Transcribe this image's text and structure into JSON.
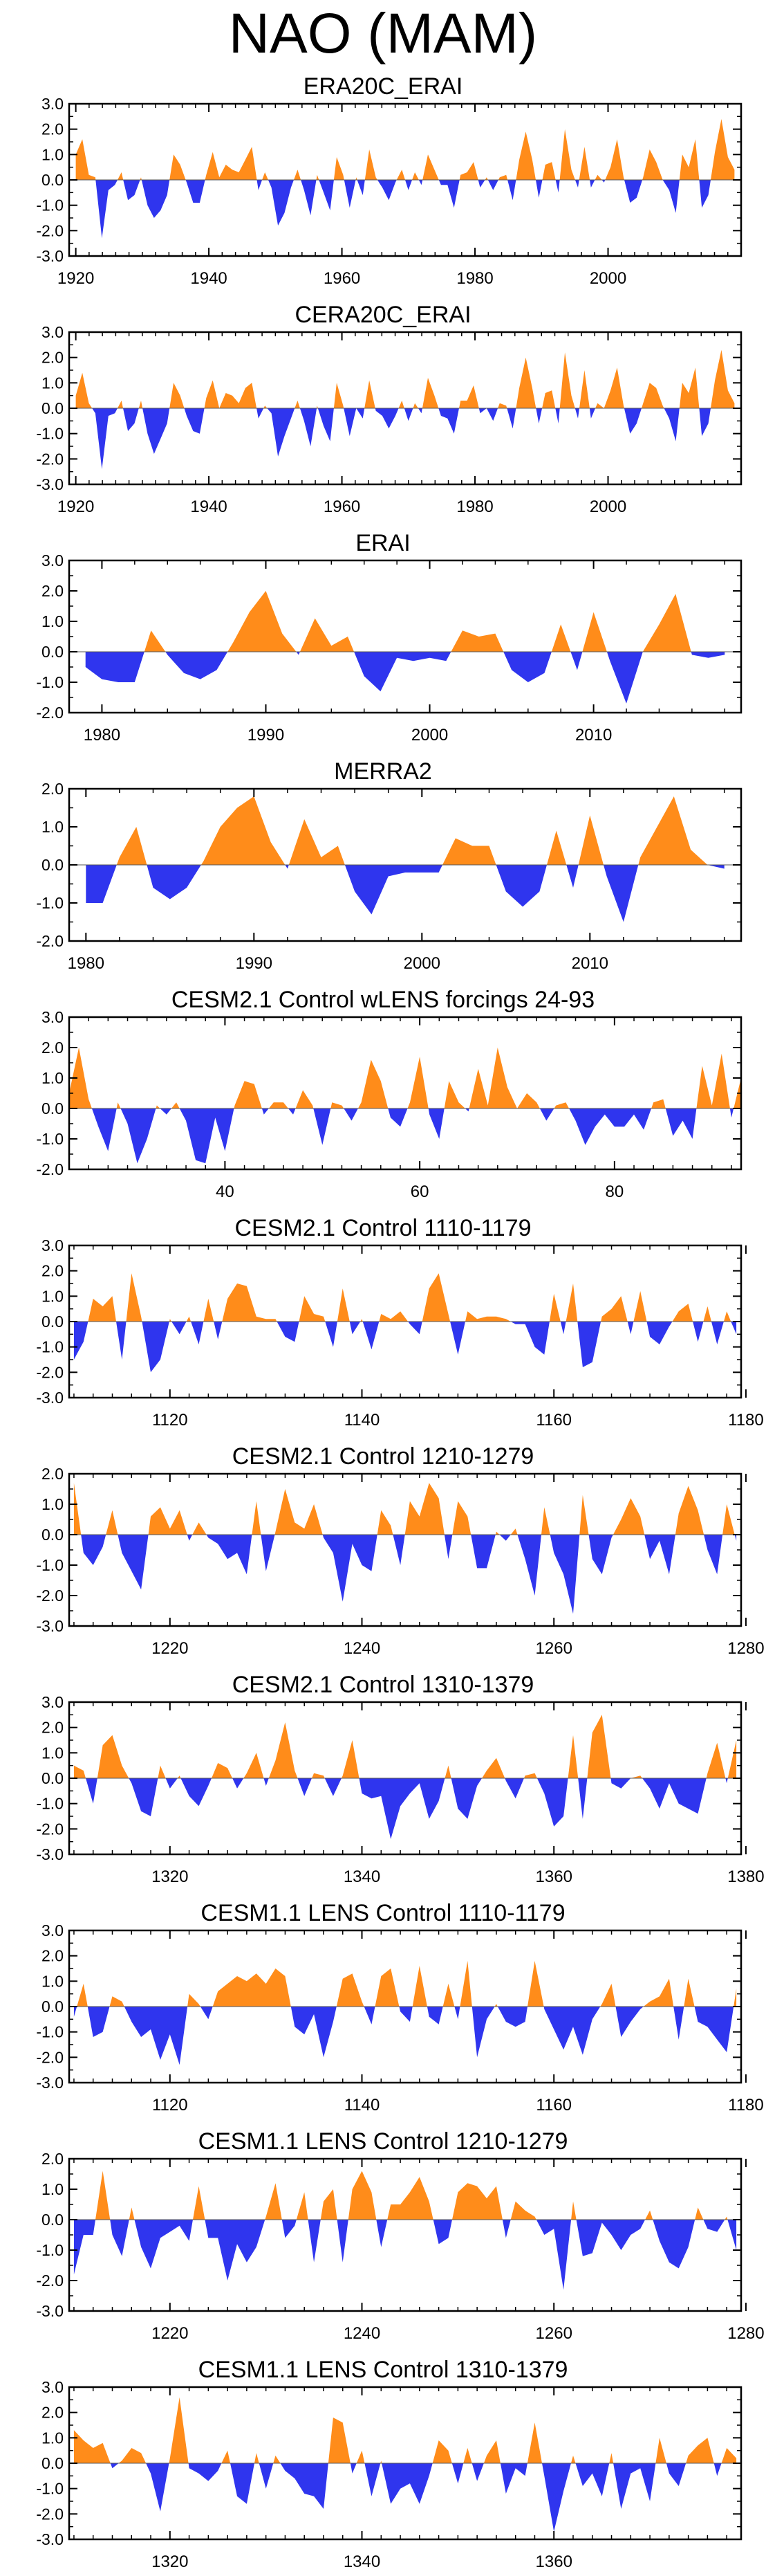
{
  "title": "NAO (MAM)",
  "colors": {
    "positive": "#ff8c1a",
    "negative": "#2f35ee",
    "axis": "#000000",
    "zero_line": "#555555"
  },
  "chart_data": [
    {
      "type": "area",
      "title": "ERA20C_ERAI",
      "x_start": 1920,
      "x_end": 2019,
      "xlim": [
        1919,
        2020
      ],
      "ylim": [
        -3,
        3
      ],
      "yticks": [
        3,
        2,
        1,
        0,
        -1,
        -2,
        -3
      ],
      "ytick_labels": [
        "3.0",
        "2.0",
        "1.0",
        "0.0",
        "-1.0",
        "-2.0",
        "-3.0"
      ],
      "xticks": [
        1920,
        1940,
        1960,
        1980,
        2000
      ],
      "xtick_labels": [
        "1920",
        "1940",
        "1960",
        "1980",
        "2000"
      ],
      "values": [
        1.0,
        1.6,
        0.2,
        0.1,
        -2.3,
        -0.4,
        -0.2,
        0.3,
        -0.8,
        -0.6,
        0.1,
        -1.0,
        -1.5,
        -1.2,
        -0.6,
        1.0,
        0.6,
        -0.1,
        -0.9,
        -0.9,
        0.2,
        1.1,
        0.1,
        0.6,
        0.4,
        0.3,
        0.8,
        1.3,
        -0.4,
        0.3,
        -0.3,
        -1.8,
        -1.3,
        -0.3,
        0.4,
        -0.4,
        -1.4,
        0.2,
        -0.5,
        -1.2,
        0.9,
        0.2,
        -1.1,
        0.1,
        -0.6,
        1.2,
        0.1,
        -0.3,
        -0.8,
        -0.1,
        0.4,
        -0.4,
        0.3,
        -0.2,
        1.0,
        0.4,
        -0.2,
        -0.2,
        -1.1,
        0.2,
        0.3,
        0.7,
        -0.3,
        0.1,
        -0.4,
        0.1,
        0.2,
        -0.8,
        0.8,
        1.9,
        0.8,
        -0.7,
        0.6,
        0.7,
        -0.5,
        2.0,
        0.4,
        -0.3,
        1.3,
        -0.3,
        0.2,
        -0.1,
        0.5,
        1.6,
        0.1,
        -0.9,
        -0.7,
        0.1,
        1.2,
        0.7,
        0.0,
        -0.4,
        -1.3,
        1.0,
        0.5,
        1.6,
        -1.1,
        -0.6,
        1.1,
        2.4,
        0.9,
        0.4
      ]
    },
    {
      "type": "area",
      "title": "CERA20C_ERAI",
      "x_start": 1920,
      "x_end": 2019,
      "xlim": [
        1919,
        2020
      ],
      "ylim": [
        -3,
        3
      ],
      "yticks": [
        3,
        2,
        1,
        0,
        -1,
        -2,
        -3
      ],
      "ytick_labels": [
        "3.0",
        "2.0",
        "1.0",
        "0.0",
        "-1.0",
        "-2.0",
        "-3.0"
      ],
      "xticks": [
        1920,
        1940,
        1960,
        1980,
        2000
      ],
      "xtick_labels": [
        "1920",
        "1940",
        "1960",
        "1980",
        "2000"
      ],
      "values": [
        0.5,
        1.4,
        0.2,
        -0.2,
        -2.4,
        -0.3,
        -0.2,
        0.3,
        -0.9,
        -0.6,
        0.3,
        -1.0,
        -1.8,
        -1.2,
        -0.6,
        1.0,
        0.5,
        -0.3,
        -0.9,
        -1.0,
        0.4,
        1.1,
        0.0,
        0.6,
        0.5,
        0.2,
        0.8,
        1.0,
        -0.4,
        0.1,
        -0.2,
        -1.9,
        -1.1,
        -0.4,
        0.3,
        -0.5,
        -1.5,
        0.1,
        -0.7,
        -1.3,
        1.0,
        0.1,
        -1.1,
        0.0,
        -0.4,
        1.1,
        -0.1,
        -0.3,
        -0.8,
        -0.3,
        0.3,
        -0.5,
        0.2,
        -0.2,
        1.2,
        0.5,
        -0.3,
        -0.4,
        -1.0,
        0.3,
        0.3,
        0.9,
        -0.2,
        0.0,
        -0.5,
        0.2,
        0.1,
        -0.8,
        0.8,
        2.0,
        0.8,
        -0.6,
        0.6,
        0.7,
        -0.6,
        2.2,
        0.5,
        -0.4,
        1.5,
        -0.4,
        0.2,
        0.0,
        0.7,
        1.6,
        0.1,
        -1.0,
        -0.6,
        0.2,
        1.0,
        0.8,
        0.1,
        -0.4,
        -1.3,
        1.0,
        0.6,
        1.6,
        -1.1,
        -0.6,
        1.1,
        2.3,
        0.7,
        0.2
      ]
    },
    {
      "type": "area",
      "title": "ERAI",
      "x_start": 1979,
      "x_end": 2018,
      "xlim": [
        1978,
        2019
      ],
      "ylim": [
        -2,
        3
      ],
      "yticks": [
        3,
        2,
        1,
        0,
        -1,
        -2
      ],
      "ytick_labels": [
        "3.0",
        "2.0",
        "1.0",
        "0.0",
        "-1.0",
        "-2.0"
      ],
      "xticks": [
        1980,
        1990,
        2000,
        2010
      ],
      "xtick_labels": [
        "1980",
        "1990",
        "2000",
        "2010"
      ],
      "values": [
        -0.5,
        -0.9,
        -1.0,
        -1.0,
        0.7,
        -0.1,
        -0.7,
        -0.9,
        -0.6,
        0.3,
        1.3,
        2.0,
        0.6,
        -0.1,
        1.1,
        0.2,
        0.5,
        -0.8,
        -1.3,
        -0.2,
        -0.3,
        -0.2,
        -0.3,
        0.7,
        0.5,
        0.6,
        -0.6,
        -1.0,
        -0.7,
        0.9,
        -0.6,
        1.3,
        -0.3,
        -1.7,
        0.0,
        0.9,
        1.9,
        -0.1,
        -0.2,
        -0.1
      ]
    },
    {
      "type": "area",
      "title": "MERRA2",
      "x_start": 1980,
      "x_end": 2018,
      "xlim": [
        1979,
        2019
      ],
      "ylim": [
        -2,
        2
      ],
      "yticks": [
        2,
        1,
        0,
        -1,
        -2
      ],
      "ytick_labels": [
        "2.0",
        "1.0",
        "0.0",
        "-1.0",
        "-2.0"
      ],
      "xticks": [
        1980,
        1990,
        2000,
        2010
      ],
      "xtick_labels": [
        "1980",
        "1990",
        "2000",
        "2010"
      ],
      "values": [
        -1.0,
        -1.0,
        0.2,
        1.0,
        -0.6,
        -0.9,
        -0.6,
        0.1,
        1.0,
        1.5,
        1.8,
        0.6,
        -0.1,
        1.2,
        0.2,
        0.5,
        -0.7,
        -1.3,
        -0.3,
        -0.2,
        -0.2,
        -0.2,
        0.7,
        0.5,
        0.5,
        -0.7,
        -1.1,
        -0.7,
        0.9,
        -0.6,
        1.3,
        -0.3,
        -1.5,
        0.2,
        1.0,
        1.8,
        0.4,
        0.0,
        -0.1
      ]
    },
    {
      "type": "area",
      "title": "CESM2.1 Control wLENS forcings 24-93",
      "x_start": 24,
      "x_end": 93,
      "xlim": [
        24,
        93
      ],
      "ylim": [
        -2,
        3
      ],
      "yticks": [
        3,
        2,
        1,
        0,
        -1,
        -2
      ],
      "ytick_labels": [
        "3.0",
        "2.0",
        "1.0",
        "0.0",
        "-1.0",
        "-2.0"
      ],
      "xticks": [
        40,
        60,
        80
      ],
      "xtick_labels": [
        "40",
        "60",
        "80"
      ],
      "values": [
        0.5,
        2.0,
        0.3,
        -0.6,
        -1.4,
        0.2,
        -0.5,
        -1.8,
        -1.0,
        0.1,
        -0.2,
        0.2,
        -0.4,
        -1.7,
        -1.8,
        -0.3,
        -1.4,
        0.1,
        0.9,
        0.8,
        -0.2,
        0.2,
        0.2,
        -0.2,
        0.6,
        0.1,
        -1.2,
        0.2,
        0.1,
        -0.4,
        0.2,
        1.6,
        0.9,
        -0.3,
        -0.6,
        0.2,
        1.7,
        -0.2,
        -1.0,
        0.9,
        0.2,
        -0.1,
        1.3,
        0.1,
        2.0,
        0.7,
        0.0,
        0.5,
        0.2,
        -0.4,
        0.1,
        0.2,
        -0.4,
        -1.2,
        -0.6,
        -0.2,
        -0.6,
        -0.6,
        -0.2,
        -0.7,
        0.2,
        0.3,
        -0.9,
        -0.4,
        -1.0,
        1.4,
        0.1,
        1.8,
        -0.3,
        1.0
      ]
    },
    {
      "type": "area",
      "title": "CESM2.1 Control 1110-1179",
      "x_start": 1110,
      "x_end": 1179,
      "xlim": [
        1109.5,
        1179.5
      ],
      "ylim": [
        -3,
        3
      ],
      "yticks": [
        3,
        2,
        1,
        0,
        -1,
        -2,
        -3
      ],
      "ytick_labels": [
        "3.0",
        "2.0",
        "1.0",
        "0.0",
        "-1.0",
        "-2.0",
        "-3.0"
      ],
      "xticks": [
        1120,
        1140,
        1160,
        1180
      ],
      "xtick_labels": [
        "1120",
        "1140",
        "1160",
        "1180"
      ],
      "values": [
        -1.5,
        -0.8,
        0.9,
        0.6,
        1.0,
        -1.5,
        1.9,
        0.2,
        -2.0,
        -1.5,
        0.1,
        -0.5,
        0.2,
        -0.9,
        0.9,
        -0.7,
        0.9,
        1.5,
        1.4,
        0.2,
        0.1,
        0.1,
        -0.6,
        -0.8,
        1.0,
        0.3,
        0.2,
        -1.0,
        1.3,
        -0.5,
        0.1,
        -1.1,
        0.3,
        0.1,
        0.4,
        -0.1,
        -0.5,
        1.3,
        1.9,
        0.3,
        -1.3,
        0.4,
        0.1,
        0.2,
        0.2,
        0.1,
        -0.1,
        -0.1,
        -1.0,
        -1.3,
        1.1,
        -0.5,
        1.5,
        -1.8,
        -1.6,
        0.2,
        0.5,
        1.0,
        -0.5,
        1.2,
        -0.6,
        -0.9,
        -0.2,
        0.4,
        0.7,
        -0.8,
        0.6,
        -0.9,
        0.4,
        -0.5
      ]
    },
    {
      "type": "area",
      "title": "CESM2.1 Control 1210-1279",
      "x_start": 1210,
      "x_end": 1279,
      "xlim": [
        1209.5,
        1279.5
      ],
      "ylim": [
        -3,
        2
      ],
      "yticks": [
        2,
        1,
        0,
        -1,
        -2,
        -3
      ],
      "ytick_labels": [
        "2.0",
        "1.0",
        "0.0",
        "-1.0",
        "-2.0",
        "-3.0"
      ],
      "xticks": [
        1220,
        1240,
        1260,
        1280
      ],
      "xtick_labels": [
        "1220",
        "1240",
        "1260",
        "1280"
      ],
      "values": [
        1.7,
        -0.6,
        -1.0,
        -0.4,
        0.8,
        -0.6,
        -1.2,
        -1.8,
        0.6,
        0.9,
        0.2,
        0.8,
        -0.2,
        0.4,
        -0.1,
        -0.3,
        -0.8,
        -0.6,
        -1.3,
        1.1,
        -1.2,
        0.1,
        1.5,
        0.4,
        0.2,
        1.0,
        -0.1,
        -0.6,
        -2.2,
        -0.3,
        -1.0,
        -1.2,
        0.8,
        0.3,
        -1.0,
        1.1,
        0.6,
        1.7,
        1.2,
        -0.8,
        1.1,
        0.6,
        -1.1,
        -1.1,
        0.1,
        -0.2,
        0.2,
        -0.8,
        -2.0,
        0.9,
        -0.6,
        -1.3,
        -2.6,
        1.3,
        -0.8,
        -1.3,
        -0.1,
        0.5,
        1.2,
        0.6,
        -0.8,
        -0.2,
        -1.3,
        0.7,
        1.6,
        0.8,
        -0.5,
        -1.3,
        1.0,
        -0.2
      ]
    },
    {
      "type": "area",
      "title": "CESM2.1 Control 1310-1379",
      "x_start": 1310,
      "x_end": 1379,
      "xlim": [
        1309.5,
        1379.5
      ],
      "ylim": [
        -3,
        3
      ],
      "yticks": [
        3,
        2,
        1,
        0,
        -1,
        -2,
        -3
      ],
      "ytick_labels": [
        "3.0",
        "2.0",
        "1.0",
        "0.0",
        "-1.0",
        "-2.0",
        "-3.0"
      ],
      "xticks": [
        1320,
        1340,
        1360,
        1380
      ],
      "xtick_labels": [
        "1320",
        "1340",
        "1360",
        "1380"
      ],
      "values": [
        0.5,
        0.3,
        -1.0,
        1.3,
        1.7,
        0.5,
        -0.2,
        -1.3,
        -1.5,
        0.5,
        -0.4,
        0.1,
        -0.7,
        -1.1,
        -0.3,
        0.6,
        0.4,
        -0.4,
        0.2,
        1.0,
        -0.3,
        0.7,
        2.2,
        0.3,
        -0.7,
        0.2,
        0.1,
        -0.7,
        0.1,
        1.5,
        -0.6,
        -0.8,
        -0.7,
        -2.4,
        -1.1,
        -0.6,
        -0.2,
        -1.6,
        -0.9,
        0.5,
        -1.2,
        -1.6,
        -0.3,
        0.3,
        0.8,
        -0.1,
        -0.8,
        0.1,
        0.2,
        -0.6,
        -1.9,
        -1.5,
        1.7,
        -1.6,
        1.8,
        2.5,
        -0.2,
        -0.4,
        0.0,
        0.1,
        -0.4,
        -1.2,
        -0.2,
        -1.0,
        -1.2,
        -1.4,
        0.2,
        1.4,
        -0.2,
        1.5
      ]
    },
    {
      "type": "area",
      "title": "CESM1.1 LENS Control 1110-1179",
      "x_start": 1110,
      "x_end": 1179,
      "xlim": [
        1109.5,
        1179.5
      ],
      "ylim": [
        -3,
        3
      ],
      "yticks": [
        3,
        2,
        1,
        0,
        -1,
        -2,
        -3
      ],
      "ytick_labels": [
        "3.0",
        "2.0",
        "1.0",
        "0.0",
        "-1.0",
        "-2.0",
        "-3.0"
      ],
      "xticks": [
        1120,
        1140,
        1160,
        1180
      ],
      "xtick_labels": [
        "1120",
        "1140",
        "1160",
        "1180"
      ],
      "values": [
        -0.4,
        0.9,
        -1.2,
        -1.0,
        0.4,
        0.2,
        -0.6,
        -1.2,
        -0.9,
        -2.1,
        -1.1,
        -2.3,
        0.5,
        0.1,
        -0.5,
        0.6,
        0.9,
        1.2,
        1.0,
        1.3,
        0.9,
        1.5,
        1.2,
        -0.8,
        -1.1,
        -0.3,
        -2.0,
        -0.6,
        1.1,
        1.3,
        0.2,
        -0.7,
        1.2,
        1.5,
        -0.2,
        -0.6,
        1.6,
        -0.4,
        -0.7,
        0.9,
        -0.5,
        1.8,
        -2.0,
        -0.5,
        0.1,
        -0.6,
        -0.8,
        -0.6,
        1.8,
        -0.1,
        -0.9,
        -1.7,
        -0.8,
        -1.9,
        -0.5,
        0.1,
        0.9,
        -1.2,
        -0.6,
        -0.1,
        0.2,
        0.4,
        1.1,
        -1.3,
        1.1,
        -0.6,
        -0.8,
        -1.3,
        -1.8,
        0.7
      ]
    },
    {
      "type": "area",
      "title": "CESM1.1 LENS Control 1210-1279",
      "x_start": 1210,
      "x_end": 1279,
      "xlim": [
        1209.5,
        1279.5
      ],
      "ylim": [
        -3,
        2
      ],
      "yticks": [
        2,
        1,
        0,
        -1,
        -2,
        -3
      ],
      "ytick_labels": [
        "2.0",
        "1.0",
        "0.0",
        "-1.0",
        "-2.0",
        "-3.0"
      ],
      "xticks": [
        1220,
        1240,
        1260,
        1280
      ],
      "xtick_labels": [
        "1220",
        "1240",
        "1260",
        "1280"
      ],
      "values": [
        -1.8,
        -0.5,
        -0.5,
        1.6,
        -0.5,
        -1.2,
        0.4,
        -0.9,
        -1.6,
        -0.6,
        -0.4,
        -0.2,
        -0.7,
        1.1,
        -0.6,
        -0.6,
        -2.0,
        -0.8,
        -1.4,
        -0.9,
        0.1,
        1.2,
        -0.6,
        -0.2,
        0.9,
        -1.4,
        0.6,
        1.0,
        -1.4,
        1.0,
        1.6,
        0.9,
        -0.9,
        0.5,
        0.5,
        0.9,
        1.4,
        0.6,
        -0.8,
        -0.6,
        0.9,
        1.2,
        1.1,
        0.7,
        1.1,
        -0.6,
        0.6,
        0.3,
        0.1,
        -0.5,
        -0.3,
        -2.3,
        0.6,
        -1.2,
        -1.1,
        -0.1,
        -0.5,
        -1.0,
        -0.5,
        -0.3,
        0.3,
        -0.7,
        -1.4,
        -1.6,
        -0.9,
        0.4,
        -0.3,
        -0.4,
        0.1,
        -1.0
      ]
    },
    {
      "type": "area",
      "title": "CESM1.1 LENS Control 1310-1379",
      "x_start": 1310,
      "x_end": 1379,
      "xlim": [
        1309.5,
        1379.5
      ],
      "ylim": [
        -3,
        3
      ],
      "yticks": [
        3,
        2,
        1,
        0,
        -1,
        -2,
        -3
      ],
      "ytick_labels": [
        "3.0",
        "2.0",
        "1.0",
        "0.0",
        "-1.0",
        "-2.0",
        "-3.0"
      ],
      "xticks": [
        1320,
        1340,
        1360
      ],
      "xtick_labels": [
        "1320",
        "1340",
        "1360"
      ],
      "values": [
        1.3,
        0.9,
        0.6,
        0.8,
        -0.2,
        0.1,
        0.6,
        0.4,
        -0.4,
        -1.9,
        0.2,
        2.6,
        -0.2,
        -0.4,
        -0.7,
        -0.3,
        0.5,
        -1.3,
        -1.6,
        0.4,
        -1.0,
        0.3,
        -0.3,
        -0.6,
        -1.2,
        -1.3,
        -1.8,
        1.8,
        1.6,
        -0.4,
        0.5,
        -1.3,
        0.1,
        -1.6,
        -1.0,
        -0.8,
        -1.6,
        -0.5,
        0.9,
        0.5,
        -0.8,
        0.6,
        -0.7,
        0.3,
        0.9,
        -1.2,
        -0.2,
        -0.5,
        1.6,
        -0.5,
        -2.7,
        -1.1,
        0.3,
        -0.9,
        -0.4,
        -1.3,
        0.4,
        -1.8,
        -0.4,
        -0.2,
        -1.5,
        1.0,
        -0.4,
        -0.9,
        0.3,
        0.7,
        1.0,
        -0.5,
        0.6,
        0.2
      ]
    }
  ]
}
